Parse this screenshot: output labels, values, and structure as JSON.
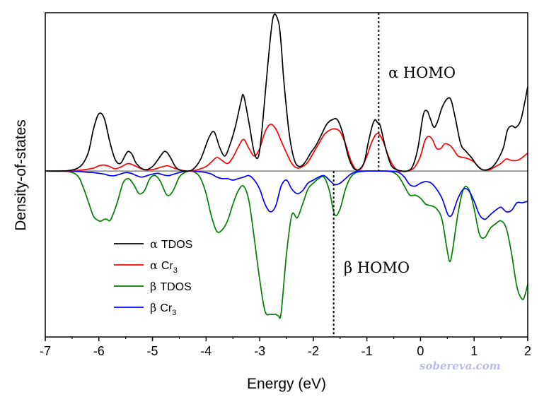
{
  "chart_data": {
    "type": "line",
    "xlabel": "Energy (eV)",
    "ylabel": "Density-of-states",
    "xlim": [
      -7,
      2
    ],
    "ylim": [
      -1.1,
      1.05
    ],
    "x_ticks": [
      -7,
      -6,
      -5,
      -4,
      -3,
      -2,
      -1,
      0,
      1,
      2
    ],
    "x_tick_labels": [
      "-7",
      "-6",
      "-5",
      "-4",
      "-3",
      "-2",
      "-1",
      "0",
      "1",
      "2"
    ],
    "y_ticks_shown": false,
    "grid": false,
    "zero_line_color": "#808080",
    "legend_position": "bottom-left",
    "series": [
      {
        "name": "α TDOS",
        "legend_prefix": "α",
        "legend_base": "TDOS",
        "legend_sub": "",
        "color": "#000000",
        "x": [
          -7,
          -6.6,
          -6.35,
          -6.2,
          -6.1,
          -6.0,
          -5.9,
          -5.8,
          -5.7,
          -5.6,
          -5.5,
          -5.45,
          -5.38,
          -5.3,
          -5.15,
          -5.0,
          -4.85,
          -4.78,
          -4.72,
          -4.65,
          -4.55,
          -4.4,
          -4.25,
          -4.1,
          -3.95,
          -3.85,
          -3.75,
          -3.65,
          -3.55,
          -3.45,
          -3.35,
          -3.3,
          -3.2,
          -3.1,
          -3.02,
          -2.95,
          -2.85,
          -2.75,
          -2.65,
          -2.6,
          -2.55,
          -2.45,
          -2.35,
          -2.25,
          -2.15,
          -2.05,
          -1.95,
          -1.85,
          -1.75,
          -1.65,
          -1.55,
          -1.45,
          -1.35,
          -1.25,
          -1.15,
          -1.05,
          -0.98,
          -0.9,
          -0.85,
          -0.8,
          -0.75,
          -0.65,
          -0.55,
          -0.45,
          -0.35,
          -0.25,
          -0.15,
          -0.05,
          0.05,
          0.12,
          0.18,
          0.25,
          0.32,
          0.4,
          0.5,
          0.57,
          0.65,
          0.75,
          0.85,
          0.95,
          1.05,
          1.15,
          1.25,
          1.35,
          1.45,
          1.55,
          1.62,
          1.7,
          1.78,
          1.88,
          2.0
        ],
        "y": [
          0,
          0.002,
          0.03,
          0.12,
          0.28,
          0.38,
          0.35,
          0.2,
          0.08,
          0.05,
          0.11,
          0.13,
          0.11,
          0.05,
          0.01,
          0.03,
          0.1,
          0.13,
          0.12,
          0.08,
          0.02,
          0.0,
          0.01,
          0.08,
          0.22,
          0.26,
          0.16,
          0.1,
          0.18,
          0.3,
          0.46,
          0.5,
          0.32,
          0.12,
          0.1,
          0.3,
          0.7,
          1.02,
          0.99,
          0.84,
          0.6,
          0.25,
          0.07,
          0.03,
          0.06,
          0.12,
          0.17,
          0.24,
          0.31,
          0.34,
          0.34,
          0.25,
          0.1,
          0.02,
          0.01,
          0.06,
          0.18,
          0.3,
          0.34,
          0.32,
          0.3,
          0.15,
          0.04,
          0.01,
          0.0,
          0.0,
          0.03,
          0.15,
          0.37,
          0.4,
          0.35,
          0.29,
          0.33,
          0.42,
          0.48,
          0.47,
          0.35,
          0.18,
          0.13,
          0.09,
          0.04,
          0.01,
          0.01,
          0.03,
          0.08,
          0.16,
          0.27,
          0.3,
          0.29,
          0.35,
          0.56
        ]
      },
      {
        "name": "α Cr3",
        "legend_prefix": "α",
        "legend_base": "Cr",
        "legend_sub": "3",
        "color": "#ff0000",
        "x": [
          -7,
          -6.6,
          -6.3,
          -6.1,
          -6.0,
          -5.9,
          -5.8,
          -5.7,
          -5.6,
          -5.45,
          -5.3,
          -5.15,
          -5.0,
          -4.85,
          -4.72,
          -4.6,
          -4.45,
          -4.3,
          -4.15,
          -4.0,
          -3.9,
          -3.8,
          -3.7,
          -3.6,
          -3.5,
          -3.4,
          -3.3,
          -3.2,
          -3.1,
          -3.0,
          -2.9,
          -2.8,
          -2.7,
          -2.6,
          -2.5,
          -2.4,
          -2.3,
          -2.2,
          -2.1,
          -2.0,
          -1.9,
          -1.8,
          -1.7,
          -1.6,
          -1.5,
          -1.4,
          -1.3,
          -1.2,
          -1.1,
          -1.0,
          -0.9,
          -0.8,
          -0.7,
          -0.6,
          -0.5,
          -0.4,
          -0.3,
          -0.2,
          -0.1,
          0.0,
          0.08,
          0.15,
          0.22,
          0.3,
          0.38,
          0.45,
          0.55,
          0.62,
          0.7,
          0.8,
          0.9,
          1.0,
          1.1,
          1.2,
          1.3,
          1.4,
          1.5,
          1.6,
          1.7,
          1.8,
          1.9,
          2.0
        ],
        "y": [
          0,
          0.001,
          0.008,
          0.02,
          0.035,
          0.04,
          0.03,
          0.015,
          0.025,
          0.05,
          0.03,
          0.008,
          0.01,
          0.025,
          0.035,
          0.02,
          0.005,
          0.0,
          0.01,
          0.03,
          0.06,
          0.09,
          0.07,
          0.05,
          0.09,
          0.16,
          0.21,
          0.15,
          0.1,
          0.15,
          0.26,
          0.31,
          0.28,
          0.2,
          0.12,
          0.05,
          0.02,
          0.03,
          0.06,
          0.12,
          0.18,
          0.24,
          0.27,
          0.28,
          0.26,
          0.18,
          0.07,
          0.01,
          0.02,
          0.1,
          0.2,
          0.25,
          0.2,
          0.1,
          0.03,
          0.0,
          0.0,
          0.003,
          0.03,
          0.1,
          0.2,
          0.23,
          0.21,
          0.15,
          0.15,
          0.18,
          0.17,
          0.14,
          0.1,
          0.09,
          0.08,
          0.06,
          0.02,
          0.005,
          0.01,
          0.03,
          0.05,
          0.08,
          0.07,
          0.07,
          0.09,
          0.12
        ]
      },
      {
        "name": "β TDOS",
        "legend_prefix": "β",
        "legend_base": "TDOS",
        "legend_sub": "",
        "color": "#008000",
        "x": [
          -7,
          -6.6,
          -6.4,
          -6.3,
          -6.2,
          -6.1,
          -6.0,
          -5.95,
          -5.9,
          -5.85,
          -5.8,
          -5.75,
          -5.65,
          -5.55,
          -5.45,
          -5.35,
          -5.25,
          -5.15,
          -5.05,
          -4.95,
          -4.85,
          -4.75,
          -4.68,
          -4.6,
          -4.5,
          -4.4,
          -4.3,
          -4.2,
          -4.1,
          -4.0,
          -3.9,
          -3.8,
          -3.7,
          -3.6,
          -3.5,
          -3.4,
          -3.3,
          -3.2,
          -3.1,
          -3.0,
          -2.9,
          -2.8,
          -2.7,
          -2.65,
          -2.6,
          -2.5,
          -2.4,
          -2.3,
          -2.2,
          -2.1,
          -2.0,
          -1.9,
          -1.8,
          -1.7,
          -1.6,
          -1.5,
          -1.4,
          -1.3,
          -1.2,
          -1.1,
          -1.0,
          -0.9,
          -0.8,
          -0.7,
          -0.6,
          -0.5,
          -0.4,
          -0.3,
          -0.2,
          -0.1,
          0.0,
          0.1,
          0.2,
          0.3,
          0.4,
          0.5,
          0.55,
          0.6,
          0.7,
          0.8,
          0.9,
          1.0,
          1.1,
          1.2,
          1.3,
          1.4,
          1.5,
          1.6,
          1.7,
          1.8,
          1.9,
          1.95,
          2.0
        ],
        "y": [
          0,
          -0.002,
          -0.03,
          -0.1,
          -0.2,
          -0.3,
          -0.33,
          -0.33,
          -0.32,
          -0.32,
          -0.33,
          -0.3,
          -0.2,
          -0.08,
          -0.05,
          -0.09,
          -0.15,
          -0.13,
          -0.05,
          -0.03,
          -0.07,
          -0.15,
          -0.16,
          -0.12,
          -0.04,
          -0.01,
          -0.0,
          -0.01,
          -0.05,
          -0.15,
          -0.3,
          -0.4,
          -0.39,
          -0.33,
          -0.22,
          -0.13,
          -0.1,
          -0.2,
          -0.45,
          -0.72,
          -0.93,
          -0.95,
          -0.95,
          -0.96,
          -0.94,
          -0.55,
          -0.29,
          -0.31,
          -0.22,
          -0.12,
          -0.08,
          -0.05,
          -0.04,
          -0.13,
          -0.29,
          -0.25,
          -0.12,
          -0.04,
          -0.01,
          -0.003,
          0.0,
          0.0,
          0.0,
          0.0,
          -0.001,
          -0.01,
          -0.04,
          -0.1,
          -0.16,
          -0.16,
          -0.18,
          -0.22,
          -0.23,
          -0.25,
          -0.32,
          -0.53,
          -0.6,
          -0.52,
          -0.28,
          -0.12,
          -0.12,
          -0.25,
          -0.42,
          -0.44,
          -0.38,
          -0.35,
          -0.33,
          -0.38,
          -0.55,
          -0.77,
          -0.85,
          -0.82,
          -0.75
        ]
      },
      {
        "name": "β Cr3",
        "legend_prefix": "β",
        "legend_base": "Cr",
        "legend_sub": "3",
        "color": "#0000ff",
        "x": [
          -7,
          -6.6,
          -6.4,
          -6.3,
          -6.2,
          -6.1,
          -6.0,
          -5.9,
          -5.8,
          -5.7,
          -5.6,
          -5.5,
          -5.4,
          -5.3,
          -5.2,
          -5.1,
          -5.0,
          -4.9,
          -4.8,
          -4.7,
          -4.6,
          -4.5,
          -4.4,
          -4.3,
          -4.2,
          -4.1,
          -4.0,
          -3.9,
          -3.8,
          -3.7,
          -3.6,
          -3.5,
          -3.4,
          -3.3,
          -3.2,
          -3.1,
          -3.0,
          -2.9,
          -2.8,
          -2.7,
          -2.6,
          -2.5,
          -2.4,
          -2.3,
          -2.2,
          -2.1,
          -2.0,
          -1.9,
          -1.8,
          -1.7,
          -1.6,
          -1.5,
          -1.4,
          -1.3,
          -1.2,
          -1.1,
          -1.0,
          -0.9,
          -0.8,
          -0.7,
          -0.6,
          -0.5,
          -0.4,
          -0.3,
          -0.2,
          -0.1,
          0.0,
          0.1,
          0.2,
          0.3,
          0.4,
          0.5,
          0.55,
          0.6,
          0.7,
          0.8,
          0.9,
          1.0,
          1.1,
          1.2,
          1.3,
          1.4,
          1.5,
          1.6,
          1.7,
          1.8,
          1.9,
          2.0
        ],
        "y": [
          0,
          -0.001,
          -0.003,
          -0.005,
          -0.008,
          -0.01,
          -0.015,
          -0.02,
          -0.03,
          -0.03,
          -0.02,
          -0.01,
          -0.015,
          -0.03,
          -0.04,
          -0.03,
          -0.02,
          -0.015,
          -0.025,
          -0.03,
          -0.02,
          -0.01,
          -0.002,
          0.0,
          -0.002,
          -0.005,
          -0.01,
          -0.02,
          -0.04,
          -0.05,
          -0.05,
          -0.06,
          -0.05,
          -0.04,
          -0.03,
          -0.06,
          -0.12,
          -0.22,
          -0.27,
          -0.23,
          -0.1,
          -0.06,
          -0.12,
          -0.15,
          -0.13,
          -0.08,
          -0.06,
          -0.04,
          -0.03,
          -0.06,
          -0.09,
          -0.08,
          -0.05,
          -0.02,
          -0.005,
          0.0,
          0.0,
          0.0,
          0.0,
          0.0,
          0.0,
          -0.002,
          -0.01,
          -0.04,
          -0.09,
          -0.1,
          -0.08,
          -0.07,
          -0.08,
          -0.12,
          -0.18,
          -0.28,
          -0.3,
          -0.28,
          -0.18,
          -0.12,
          -0.13,
          -0.2,
          -0.29,
          -0.32,
          -0.29,
          -0.26,
          -0.24,
          -0.27,
          -0.26,
          -0.21,
          -0.21,
          -0.2
        ]
      }
    ],
    "annotations": [
      {
        "text": "α HOMO",
        "x": -0.78,
        "line_style": "dotted"
      },
      {
        "text": "β HOMO",
        "x": -1.62,
        "line_style": "dotted"
      }
    ]
  },
  "watermark": "sobereva.com"
}
